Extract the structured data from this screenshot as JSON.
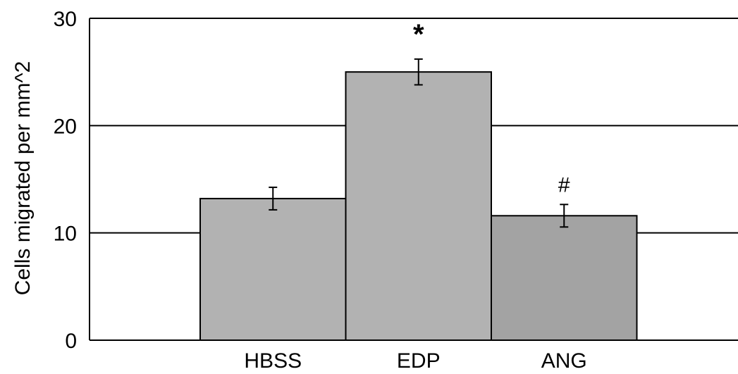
{
  "chart_data": {
    "type": "bar",
    "title": "",
    "xlabel": "",
    "ylabel": "Cells migrated per mm^2",
    "ylim": [
      0,
      30
    ],
    "yticks": [
      0,
      10,
      20,
      30
    ],
    "grid": true,
    "categories": [
      "HBSS",
      "EDP",
      "ANG"
    ],
    "values": [
      13.2,
      25.0,
      11.6
    ],
    "errors": [
      1.05,
      1.2,
      1.05
    ],
    "annotations": [
      "",
      "*",
      "#"
    ],
    "colors": [
      "#b2b2b2",
      "#b2b2b2",
      "#a3a3a3"
    ]
  }
}
